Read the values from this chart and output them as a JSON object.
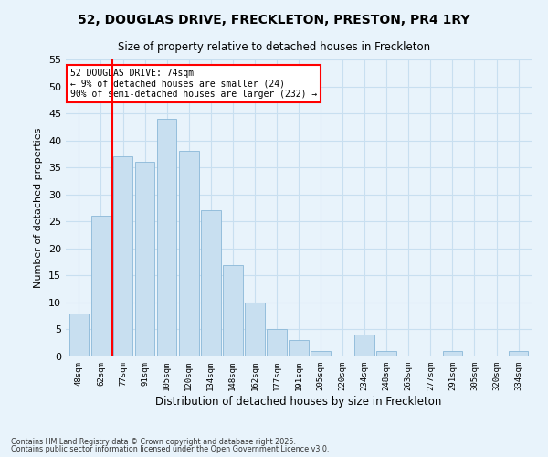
{
  "title": "52, DOUGLAS DRIVE, FRECKLETON, PRESTON, PR4 1RY",
  "subtitle": "Size of property relative to detached houses in Freckleton",
  "xlabel": "Distribution of detached houses by size in Freckleton",
  "ylabel": "Number of detached properties",
  "bar_labels": [
    "48sqm",
    "62sqm",
    "77sqm",
    "91sqm",
    "105sqm",
    "120sqm",
    "134sqm",
    "148sqm",
    "162sqm",
    "177sqm",
    "191sqm",
    "205sqm",
    "220sqm",
    "234sqm",
    "248sqm",
    "263sqm",
    "277sqm",
    "291sqm",
    "305sqm",
    "320sqm",
    "334sqm"
  ],
  "bar_values": [
    8,
    26,
    37,
    36,
    44,
    38,
    27,
    17,
    10,
    5,
    3,
    1,
    0,
    4,
    1,
    0,
    0,
    1,
    0,
    0,
    1
  ],
  "bar_color": "#c8dff0",
  "bar_edge_color": "#8ab8d8",
  "grid_color": "#c8dff0",
  "bg_color": "#e8f3fb",
  "vline_color": "red",
  "vline_pos": 1.5,
  "annotation_text": "52 DOUGLAS DRIVE: 74sqm\n← 9% of detached houses are smaller (24)\n90% of semi-detached houses are larger (232) →",
  "annotation_box_color": "white",
  "annotation_box_edge": "red",
  "ylim": [
    0,
    55
  ],
  "yticks": [
    0,
    5,
    10,
    15,
    20,
    25,
    30,
    35,
    40,
    45,
    50,
    55
  ],
  "footnote1": "Contains HM Land Registry data © Crown copyright and database right 2025.",
  "footnote2": "Contains public sector information licensed under the Open Government Licence v3.0."
}
